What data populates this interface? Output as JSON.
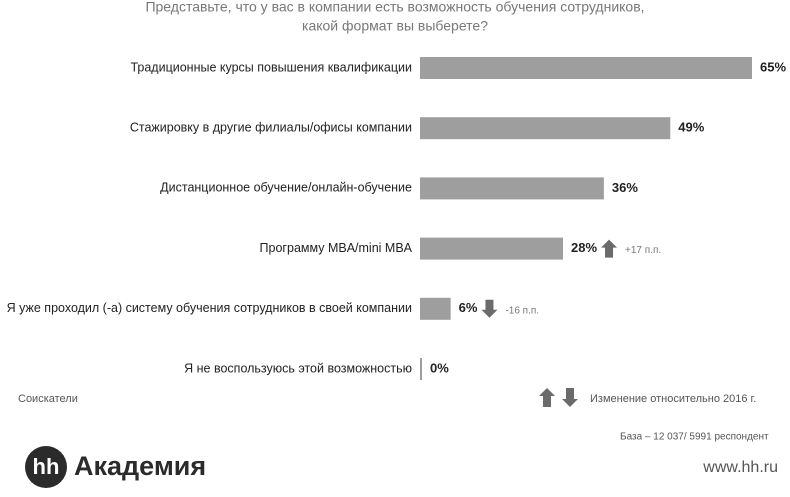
{
  "chart_data": {
    "type": "bar",
    "orientation": "horizontal",
    "title": [
      "Представьте, что у вас в компании есть возможность обучения сотрудников,",
      "какой формат вы выберете?"
    ],
    "categories": [
      "Традиционные курсы повышения квалификации",
      "Стажировку в другие филиалы/офисы компании",
      "Дистанционное обучение/онлайн-обучение",
      "Программу MBA/mini MBA",
      "Я уже проходил (-а) систему обучения сотрудников в своей компании",
      "Я не воспользуюсь этой возможностью"
    ],
    "values": [
      65,
      49,
      36,
      28,
      6,
      0
    ],
    "value_labels": [
      "65%",
      "49%",
      "36%",
      "28%",
      "6%",
      "0%"
    ],
    "change_values": [
      null,
      null,
      null,
      17,
      -16,
      null
    ],
    "change_labels": [
      null,
      null,
      null,
      "+17 п.п.",
      "-16 п.п.",
      null
    ],
    "color": "#9e9e9e",
    "arrow_color": "#6b6b6b"
  },
  "footer": {
    "respondents": "Соискатели",
    "legend": "Изменение относительно 2016 г.",
    "base": "База – 12 037/ 5991 респондент",
    "logo_mark": "hh",
    "logo_text": "Академия",
    "url": "www.hh.ru"
  }
}
